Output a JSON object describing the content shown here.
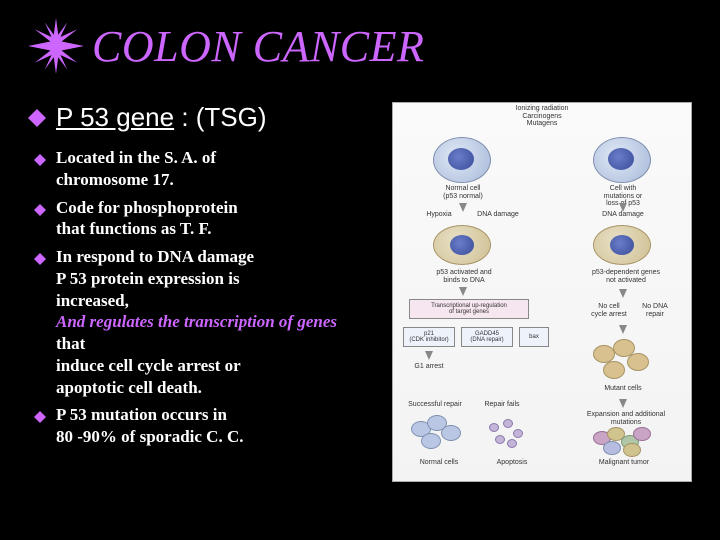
{
  "colors": {
    "background": "#000000",
    "accent": "#cc66ff",
    "text": "#ffffff",
    "figure_bg": "#fafafa",
    "figure_border": "#aaaaaa",
    "bullet_fill": "#cc66ff"
  },
  "title": "COLON CANCER",
  "subtitle": {
    "underlined": "P 53  gene",
    "rest": " : (TSG)"
  },
  "bullets": [
    {
      "lines": [
        "Located in the S. A. of",
        "chromosome 17."
      ]
    },
    {
      "lines": [
        "Code for phosphoprotein",
        "that functions as T. F."
      ]
    },
    {
      "lines": [
        "In respond to DNA damage",
        "P 53 protein expression is",
        "increased, ",
        "And regulates the transcription of genes",
        "  that",
        "induce cell cycle arrest or",
        "apoptotic cell death."
      ],
      "accent_line_indices": [
        3
      ]
    },
    {
      "lines": [
        "P 53 mutation occurs in",
        "80 -90% of sporadic C. C."
      ]
    }
  ],
  "figure": {
    "top_caption": "Ionizing radiation\nCarcinogens\nMutagens",
    "left_stream": {
      "cell_label": "Normal cell\n(p53 normal)",
      "steps": [
        "Hypoxia",
        "DNA damage",
        "p53 activated and\nbinds to DNA",
        "Transcriptional up-regulation\nof target genes"
      ],
      "boxes": [
        "p21\n(CDK inhibitor)",
        "GADD45\n(DNA repair)",
        "bax"
      ],
      "lower": [
        "G1 arrest",
        "Successful repair",
        "Repair fails",
        "Normal cells",
        "Apoptosis"
      ]
    },
    "right_stream": {
      "cell_label": "Cell with\nmutations or\nloss of p53",
      "steps": [
        "DNA damage",
        "p53-dependent genes\nnot activated",
        "No cell\ncycle arrest",
        "No DNA\nrepair",
        "Mutant cells"
      ],
      "lower": [
        "Expansion and additional\nmutations",
        "Malignant tumor"
      ]
    }
  },
  "typography": {
    "title_fontsize": 44,
    "title_style": "italic",
    "subtitle_fontsize": 26,
    "body_fontsize": 17,
    "figure_label_fontsize": 7
  }
}
